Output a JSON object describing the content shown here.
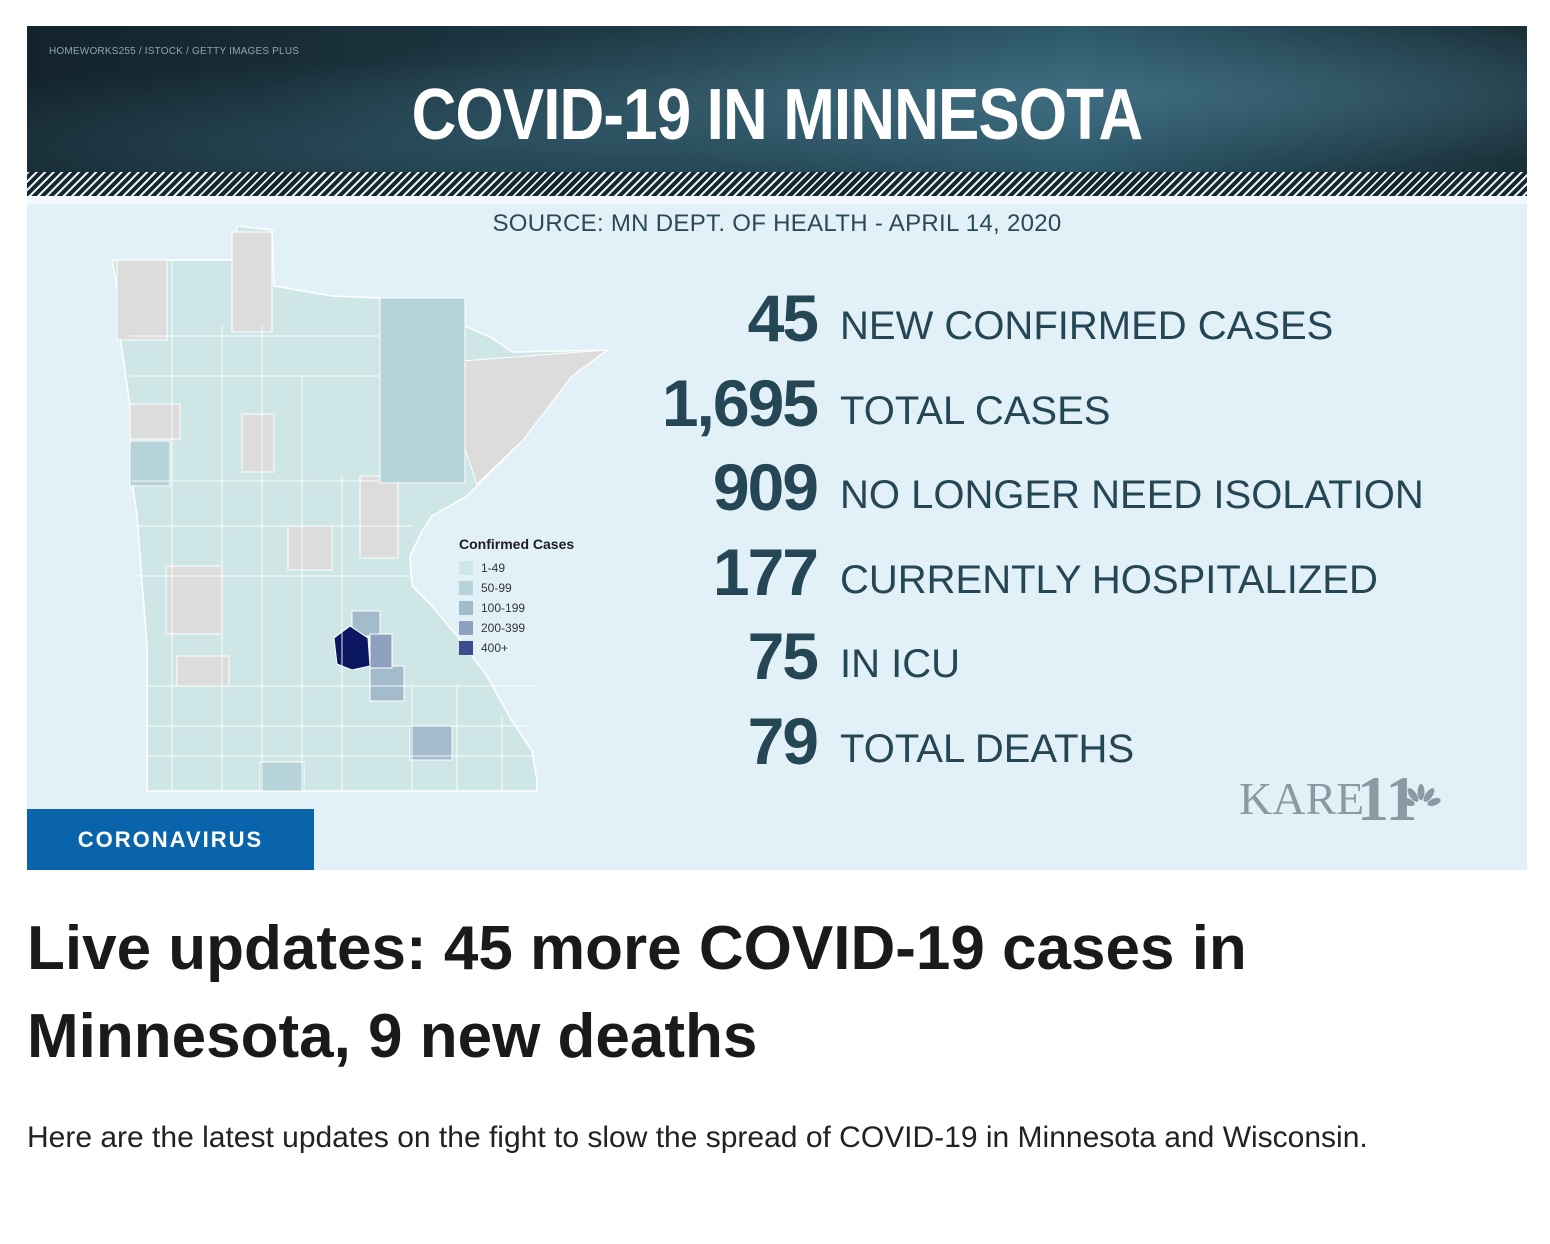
{
  "hero": {
    "photo_credit": "HOMEWORKS255 / ISTOCK / GETTY IMAGES PLUS",
    "banner_title": "COVID-19 IN MINNESOTA",
    "source_line": "SOURCE: MN DEPT. OF HEALTH - APRIL 14, 2020",
    "stats": [
      {
        "value": "45",
        "label": "NEW CONFIRMED CASES"
      },
      {
        "value": "1,695",
        "label": "TOTAL CASES"
      },
      {
        "value": "909",
        "label": "NO LONGER NEED ISOLATION"
      },
      {
        "value": "177",
        "label": "CURRENTLY HOSPITALIZED"
      },
      {
        "value": "75",
        "label": "IN ICU"
      },
      {
        "value": "79",
        "label": "TOTAL DEATHS"
      }
    ],
    "legend": {
      "title": "Confirmed Cases",
      "items": [
        {
          "label": "1-49",
          "color": "#cfe6e6"
        },
        {
          "label": "50-99",
          "color": "#b5d3d9"
        },
        {
          "label": "100-199",
          "color": "#a3bccc"
        },
        {
          "label": "200-399",
          "color": "#8ea2bf"
        },
        {
          "label": "400+",
          "color": "#3d4c8c"
        }
      ]
    },
    "map_colors": {
      "none": "#dcdcdc",
      "low": "#cfe6e6",
      "mid": "#b5d3d9",
      "high": "#a3bccc",
      "higher": "#8ea2bf",
      "top": "#0c1761"
    },
    "logo_text": "KARE",
    "logo_number": "11",
    "category_tag": "CORONAVIRUS"
  },
  "article": {
    "headline": "Live updates: 45 more COVID-19 cases in Minnesota, 9 new deaths",
    "summary": "Here are the latest updates on the fight to slow the spread of COVID-19 in Minnesota and Wisconsin."
  },
  "colors": {
    "tag_blue": "#0a64ab",
    "stat_text": "#254655",
    "panel_bg": "#e2f1f8"
  }
}
